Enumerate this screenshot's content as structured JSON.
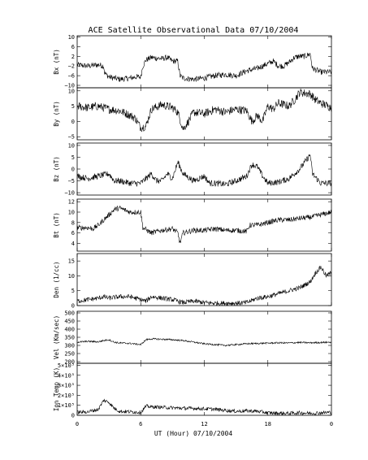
{
  "chart_data": {
    "type": "line",
    "title": "ACE Satellite Observational Data   07/10/2004",
    "xlabel": "UT (Hour)   07/10/2004",
    "x_ticks": [
      "0",
      "6",
      "12",
      "18",
      "0"
    ],
    "xlim": [
      0,
      24
    ],
    "panels": [
      {
        "id": "bx",
        "ylabel": "Bx (nT)",
        "ylim": [
          -11,
          10.5
        ],
        "yticks": [
          10,
          6,
          2,
          -2,
          -6,
          -10
        ],
        "ytick_labels": [
          "10",
          "6",
          "2",
          "−2",
          "−6",
          "−10"
        ],
        "noise": 1.2,
        "series": [
          [
            0,
            -1.5
          ],
          [
            1,
            -2
          ],
          [
            2,
            -1.5
          ],
          [
            2.5,
            -2
          ],
          [
            2.6,
            -5
          ],
          [
            3,
            -6.5
          ],
          [
            4,
            -7.5
          ],
          [
            5,
            -7
          ],
          [
            5.5,
            -6.5
          ],
          [
            6,
            -6.5
          ],
          [
            6.2,
            -2
          ],
          [
            6.5,
            0.5
          ],
          [
            7,
            1.5
          ],
          [
            8,
            1
          ],
          [
            8.5,
            1.5
          ],
          [
            9,
            0
          ],
          [
            9.5,
            0
          ],
          [
            9.7,
            -6
          ],
          [
            10,
            -7
          ],
          [
            11,
            -7.5
          ],
          [
            12,
            -7
          ],
          [
            13,
            -6
          ],
          [
            14,
            -5.5
          ],
          [
            15,
            -6
          ],
          [
            16,
            -4
          ],
          [
            17,
            -3
          ],
          [
            18,
            -1
          ],
          [
            18.5,
            0
          ],
          [
            19,
            -2
          ],
          [
            19.5,
            -2
          ],
          [
            20,
            -0.5
          ],
          [
            20.5,
            1.5
          ],
          [
            21,
            2
          ],
          [
            21.5,
            2
          ],
          [
            22,
            3
          ],
          [
            22.2,
            -3
          ],
          [
            23,
            -4.5
          ],
          [
            24,
            -4.5
          ]
        ]
      },
      {
        "id": "by",
        "ylabel": "By (nT)",
        "ylim": [
          -6,
          11
        ],
        "yticks": [
          10,
          5,
          0,
          -5
        ],
        "ytick_labels": [
          "10",
          "5",
          "0",
          "−5"
        ],
        "noise": 1.4,
        "series": [
          [
            0,
            5
          ],
          [
            1,
            4.5
          ],
          [
            2,
            5
          ],
          [
            3,
            4
          ],
          [
            4,
            3.5
          ],
          [
            5,
            2
          ],
          [
            5.5,
            1
          ],
          [
            6,
            -2
          ],
          [
            6.5,
            -1.5
          ],
          [
            7,
            4
          ],
          [
            8,
            5.5
          ],
          [
            9,
            4.5
          ],
          [
            9.5,
            3
          ],
          [
            10,
            -2.5
          ],
          [
            10.5,
            0
          ],
          [
            11,
            3
          ],
          [
            12,
            2.5
          ],
          [
            13,
            4
          ],
          [
            14,
            3
          ],
          [
            15,
            4
          ],
          [
            16,
            3.5
          ],
          [
            16.5,
            0
          ],
          [
            17,
            2
          ],
          [
            17.5,
            0
          ],
          [
            18,
            5
          ],
          [
            18.5,
            4
          ],
          [
            19,
            6
          ],
          [
            20,
            5
          ],
          [
            20.5,
            7
          ],
          [
            21,
            9.5
          ],
          [
            22,
            9
          ],
          [
            22.5,
            7
          ],
          [
            23,
            6
          ],
          [
            24,
            4.5
          ]
        ]
      },
      {
        "id": "bz",
        "ylabel": "Bz (nT)",
        "ylim": [
          -11,
          11
        ],
        "yticks": [
          10,
          5,
          0,
          -5,
          -10
        ],
        "ytick_labels": [
          "10",
          "5",
          "0",
          "−5",
          "−10"
        ],
        "noise": 1.3,
        "series": [
          [
            0,
            -3
          ],
          [
            1,
            -4
          ],
          [
            2,
            -3
          ],
          [
            3,
            -2
          ],
          [
            3.5,
            -5
          ],
          [
            4,
            -5
          ],
          [
            5,
            -6
          ],
          [
            6,
            -6
          ],
          [
            6.5,
            -4
          ],
          [
            7,
            -2
          ],
          [
            7.5,
            -5
          ],
          [
            8,
            -5
          ],
          [
            8.5,
            -2
          ],
          [
            9,
            -4
          ],
          [
            9.5,
            3
          ],
          [
            10,
            -2
          ],
          [
            11,
            -5
          ],
          [
            12,
            -3
          ],
          [
            12.5,
            -6
          ],
          [
            13,
            -6
          ],
          [
            14,
            -6.5
          ],
          [
            15,
            -5
          ],
          [
            16,
            -3
          ],
          [
            16.5,
            2
          ],
          [
            17,
            1
          ],
          [
            17.5,
            -3
          ],
          [
            18,
            -6
          ],
          [
            19,
            -5.5
          ],
          [
            20,
            -4
          ],
          [
            20.5,
            -2
          ],
          [
            21,
            0
          ],
          [
            21.5,
            3
          ],
          [
            22,
            6
          ],
          [
            22.2,
            -2
          ],
          [
            23,
            -6
          ],
          [
            24,
            -6
          ]
        ]
      },
      {
        "id": "bt",
        "ylabel": "Bt (nT)",
        "ylim": [
          2.5,
          12.5
        ],
        "yticks": [
          12,
          10,
          8,
          6,
          4
        ],
        "ytick_labels": [
          "12",
          "10",
          "8",
          "6",
          "4"
        ],
        "noise": 0.5,
        "series": [
          [
            0,
            7
          ],
          [
            1,
            7
          ],
          [
            1.5,
            6.8
          ],
          [
            2,
            7.5
          ],
          [
            2.5,
            8.5
          ],
          [
            3,
            9.5
          ],
          [
            3.5,
            10.5
          ],
          [
            4,
            10.8
          ],
          [
            5,
            10
          ],
          [
            6,
            10
          ],
          [
            6.2,
            7
          ],
          [
            7,
            6
          ],
          [
            8,
            6.5
          ],
          [
            9,
            6.8
          ],
          [
            9.5,
            6
          ],
          [
            9.7,
            4
          ],
          [
            10,
            6
          ],
          [
            11,
            6.5
          ],
          [
            12,
            6.5
          ],
          [
            13,
            6.8
          ],
          [
            14,
            6.5
          ],
          [
            15,
            6.5
          ],
          [
            16,
            6.3
          ],
          [
            16.3,
            7.5
          ],
          [
            17,
            7.5
          ],
          [
            18,
            8
          ],
          [
            19,
            8.5
          ],
          [
            20,
            8.5
          ],
          [
            21,
            8.8
          ],
          [
            22,
            9
          ],
          [
            23,
            9.5
          ],
          [
            24,
            10
          ]
        ]
      },
      {
        "id": "den",
        "ylabel": "Den (1/cc)",
        "ylim": [
          0,
          17.5
        ],
        "yticks": [
          15,
          10,
          5,
          0
        ],
        "ytick_labels": [
          "15",
          "10",
          "5",
          "0"
        ],
        "noise": 0.8,
        "series": [
          [
            0,
            1.5
          ],
          [
            1,
            2
          ],
          [
            2,
            2.5
          ],
          [
            2.5,
            3
          ],
          [
            3,
            2.5
          ],
          [
            4,
            3
          ],
          [
            5,
            3
          ],
          [
            6,
            2
          ],
          [
            6.5,
            1.5
          ],
          [
            7,
            3
          ],
          [
            8,
            2.5
          ],
          [
            9,
            2
          ],
          [
            10,
            1
          ],
          [
            11,
            1.5
          ],
          [
            12,
            1
          ],
          [
            13,
            0.8
          ],
          [
            14,
            0.8
          ],
          [
            15,
            0.8
          ],
          [
            16,
            1
          ],
          [
            17,
            2.5
          ],
          [
            18,
            3
          ],
          [
            19,
            4
          ],
          [
            20,
            5
          ],
          [
            21,
            6
          ],
          [
            22,
            8
          ],
          [
            22.5,
            11
          ],
          [
            23,
            13
          ],
          [
            23.5,
            10
          ],
          [
            24,
            11
          ]
        ]
      },
      {
        "id": "vel",
        "ylabel": "Vel (Km/sec)",
        "ylim": [
          190,
          510
        ],
        "yticks": [
          500,
          450,
          400,
          350,
          300,
          250,
          200
        ],
        "ytick_labels": [
          "500",
          "450",
          "400",
          "350",
          "300",
          "250",
          "200"
        ],
        "noise": 5,
        "series": [
          [
            0,
            320
          ],
          [
            1,
            325
          ],
          [
            2,
            322
          ],
          [
            2.5,
            330
          ],
          [
            3,
            335
          ],
          [
            3.5,
            320
          ],
          [
            4,
            315
          ],
          [
            5,
            312
          ],
          [
            6,
            305
          ],
          [
            6.5,
            335
          ],
          [
            7,
            340
          ],
          [
            8,
            338
          ],
          [
            9,
            335
          ],
          [
            10,
            330
          ],
          [
            11,
            320
          ],
          [
            12,
            310
          ],
          [
            13,
            305
          ],
          [
            14,
            300
          ],
          [
            15,
            305
          ],
          [
            16,
            310
          ],
          [
            17,
            312
          ],
          [
            18,
            314
          ],
          [
            19,
            316
          ],
          [
            20,
            315
          ],
          [
            21,
            318
          ],
          [
            22,
            316
          ],
          [
            23,
            318
          ],
          [
            24,
            320
          ]
        ]
      },
      {
        "id": "temp",
        "ylabel": "Ion Temp (K)",
        "ylim": [
          0,
          520000
        ],
        "yticks": [
          500000,
          400000,
          300000,
          200000,
          100000,
          0
        ],
        "ytick_labels": [
          "5×10⁵",
          "4×10⁵",
          "3×10⁵",
          "2×10⁵",
          "1×10⁵",
          "0"
        ],
        "noise": 18000,
        "series": [
          [
            0,
            30000
          ],
          [
            1,
            35000
          ],
          [
            2,
            60000
          ],
          [
            2.5,
            150000
          ],
          [
            3,
            130000
          ],
          [
            3.5,
            70000
          ],
          [
            4,
            40000
          ],
          [
            5,
            35000
          ],
          [
            6,
            30000
          ],
          [
            6.5,
            90000
          ],
          [
            7,
            85000
          ],
          [
            8,
            80000
          ],
          [
            9,
            75000
          ],
          [
            10,
            70000
          ],
          [
            11,
            70000
          ],
          [
            12,
            65000
          ],
          [
            13,
            60000
          ],
          [
            14,
            50000
          ],
          [
            15,
            40000
          ],
          [
            16,
            45000
          ],
          [
            17,
            40000
          ],
          [
            18,
            25000
          ],
          [
            19,
            20000
          ],
          [
            20,
            20000
          ],
          [
            21,
            25000
          ],
          [
            22,
            20000
          ],
          [
            23,
            25000
          ],
          [
            24,
            30000
          ]
        ]
      }
    ]
  }
}
